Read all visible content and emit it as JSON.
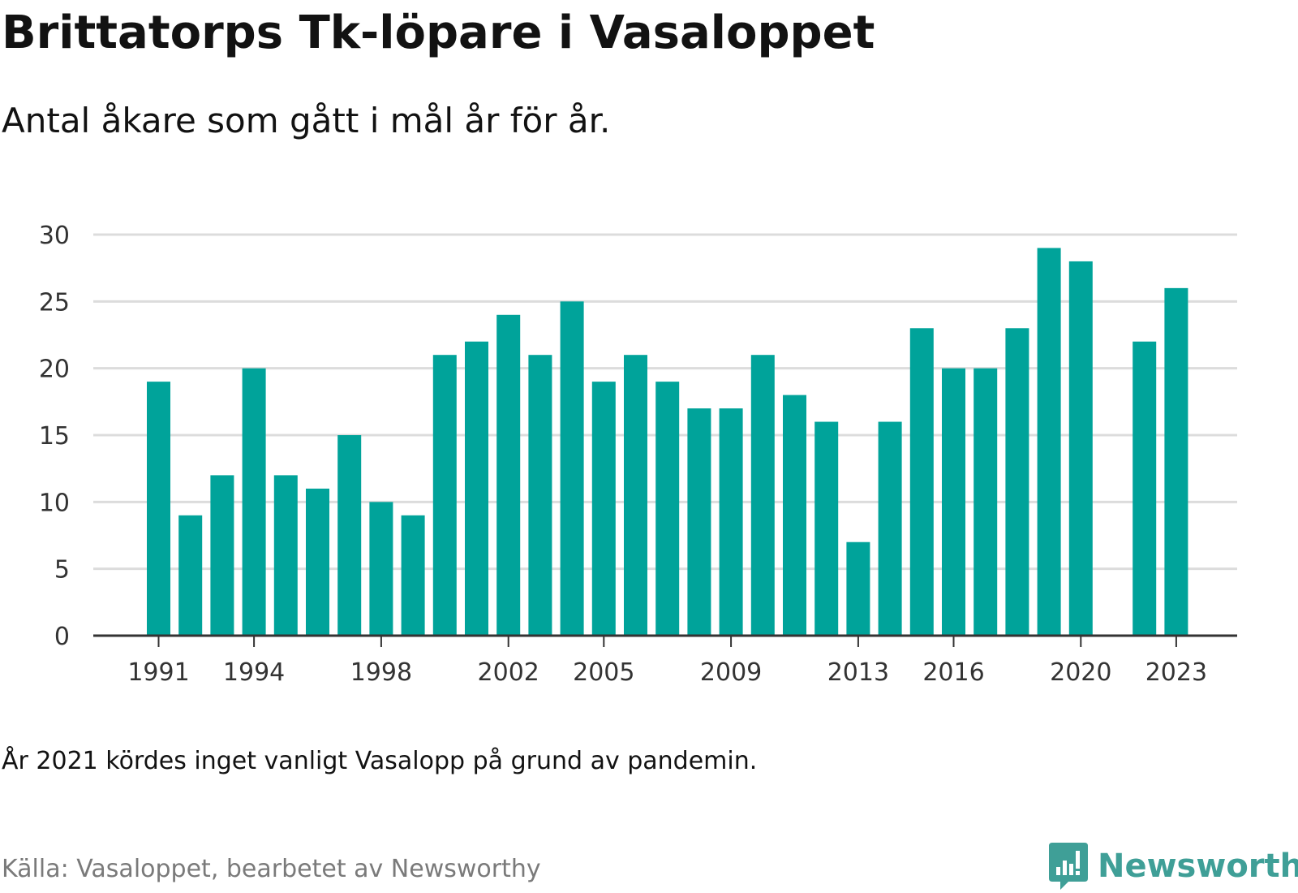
{
  "title": "Brittatorps Tk-löpare i Vasaloppet",
  "subtitle": "Antal åkare som gått i mål år för år.",
  "note": "År 2021 kördes inget vanligt Vasalopp på grund av pandemin.",
  "source": "Källa: Vasaloppet, bearbetet av Newsworthy",
  "brand": {
    "name": "Newsworthy",
    "icon": "newsworthy-logo-icon",
    "color": "#3f9f97"
  },
  "colors": {
    "bar": "#00a39a",
    "grid": "#dcdcdc",
    "axis": "#333333"
  },
  "chart_data": {
    "type": "bar",
    "title": "Brittatorps Tk-löpare i Vasaloppet",
    "subtitle": "Antal åkare som gått i mål år för år.",
    "xlabel": "",
    "ylabel": "",
    "ylim": [
      0,
      30
    ],
    "yticks": [
      0,
      5,
      10,
      15,
      20,
      25,
      30
    ],
    "xtick_labels": [
      "1991",
      "1994",
      "1998",
      "2002",
      "2005",
      "2009",
      "2013",
      "2016",
      "2020",
      "2023"
    ],
    "grid": true,
    "legend": "none",
    "categories": [
      1991,
      1992,
      1993,
      1994,
      1995,
      1996,
      1997,
      1998,
      1999,
      2000,
      2001,
      2002,
      2003,
      2004,
      2005,
      2006,
      2007,
      2008,
      2009,
      2010,
      2011,
      2012,
      2013,
      2014,
      2015,
      2016,
      2017,
      2018,
      2019,
      2020,
      2021,
      2022,
      2023
    ],
    "values": [
      19,
      9,
      12,
      20,
      12,
      11,
      15,
      10,
      9,
      21,
      22,
      24,
      21,
      25,
      19,
      21,
      19,
      17,
      17,
      21,
      18,
      16,
      7,
      16,
      23,
      20,
      20,
      23,
      29,
      28,
      null,
      22,
      26
    ]
  }
}
